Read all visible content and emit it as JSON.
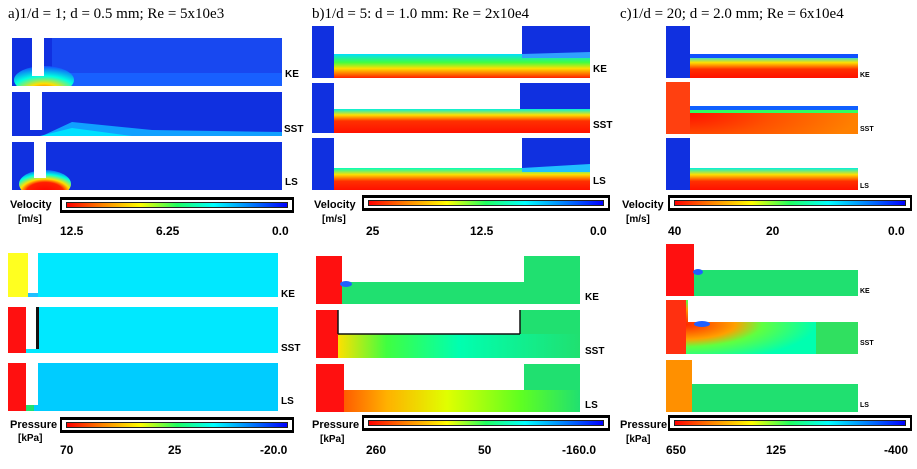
{
  "columns": [
    {
      "title": "a)1/d = 1; d = 0.5 mm; Re = 5x10e3",
      "velocity_colorbar": {
        "label": "Velocity",
        "unit": "[m/s]",
        "ticks": [
          "12.5",
          "6.25",
          "0.0"
        ]
      },
      "pressure_colorbar": {
        "label": "Pressure",
        "unit": "[kPa]",
        "ticks": [
          "70",
          "25",
          "-20.0"
        ]
      },
      "velocity_models": [
        "KE",
        "SST",
        "LS"
      ],
      "pressure_models": [
        "KE",
        "SST",
        "LS"
      ]
    },
    {
      "title": "b)1/d = 5: d = 1.0 mm: Re = 2x10e4",
      "velocity_colorbar": {
        "label": "Velocity",
        "unit": "[m/s]",
        "ticks": [
          "25",
          "12.5",
          "0.0"
        ]
      },
      "pressure_colorbar": {
        "label": "Pressure",
        "unit": "[kPa]",
        "ticks": [
          "260",
          "50",
          "-160.0"
        ]
      },
      "velocity_models": [
        "KE",
        "SST",
        "LS"
      ],
      "pressure_models": [
        "KE",
        "SST",
        "LS"
      ]
    },
    {
      "title": "c)1/d = 20; d = 2.0 mm; Re = 6x10e4",
      "velocity_colorbar": {
        "label": "Velocity",
        "unit": "[m/s]",
        "ticks": [
          "40",
          "20",
          "0.0"
        ]
      },
      "pressure_colorbar": {
        "label": "Pressure",
        "unit": "[kPa]",
        "ticks": [
          "650",
          "125",
          "-400"
        ]
      },
      "velocity_models": [
        "KE",
        "SST",
        "LS"
      ],
      "pressure_models": [
        "KE",
        "SST",
        "LS"
      ]
    }
  ],
  "colors": {
    "velocity_gradient": [
      "#ff0000",
      "#ff8800",
      "#ffff00",
      "#00ff60",
      "#00ffff",
      "#0080ff",
      "#0000ff"
    ],
    "pressure_gradient": [
      "#ff0000",
      "#ff8800",
      "#ffff00",
      "#00ff60",
      "#00ffff",
      "#0080ff",
      "#0000ff"
    ],
    "blue": "#1030e0",
    "cyan": "#00e8ff",
    "green": "#20e070",
    "red": "#ff1010",
    "orange": "#ff9000",
    "yellow": "#ffff20"
  }
}
